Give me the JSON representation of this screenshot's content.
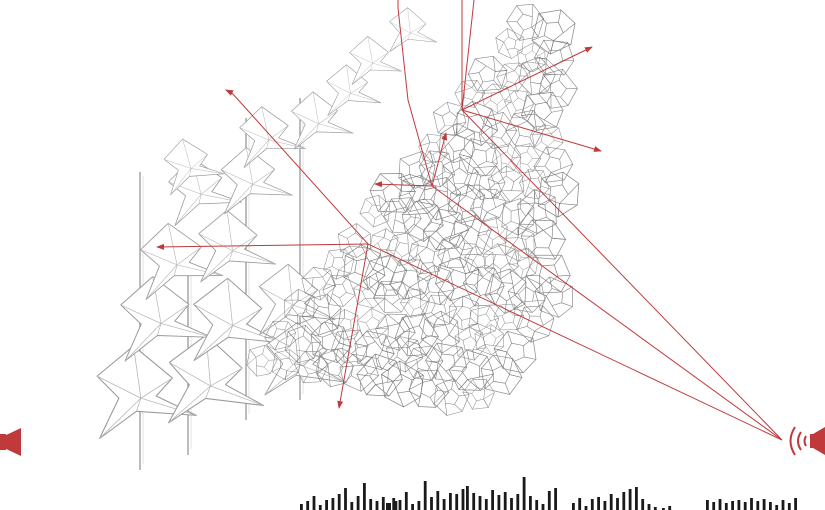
{
  "colors": {
    "accent": "#c0393b",
    "structure": "#8c8c8c",
    "waveform": "#1a1a1a",
    "background": "#ffffff"
  },
  "icons": {
    "left_speaker": "speaker-icon",
    "right_speaker": "speaker-sound-waves-icon"
  },
  "waveform": {
    "groups": [
      [
        6,
        9,
        14,
        5,
        10,
        12,
        16,
        22,
        8,
        14,
        27,
        11,
        9,
        13,
        7,
        9
      ],
      [
        7,
        12,
        10,
        18,
        6,
        9,
        29,
        13,
        19,
        11,
        17,
        16,
        21
      ],
      [
        24,
        17,
        14,
        11,
        20,
        15,
        18,
        12,
        16,
        33,
        14,
        10,
        6,
        19,
        22
      ],
      [
        7,
        12,
        4,
        11,
        13,
        9,
        16,
        12,
        18,
        21,
        23,
        11,
        6,
        3
      ],
      [
        2,
        4
      ],
      [
        10,
        8,
        11,
        7,
        9,
        10,
        8,
        12,
        9,
        11,
        8,
        5,
        10,
        7,
        12
      ]
    ]
  }
}
